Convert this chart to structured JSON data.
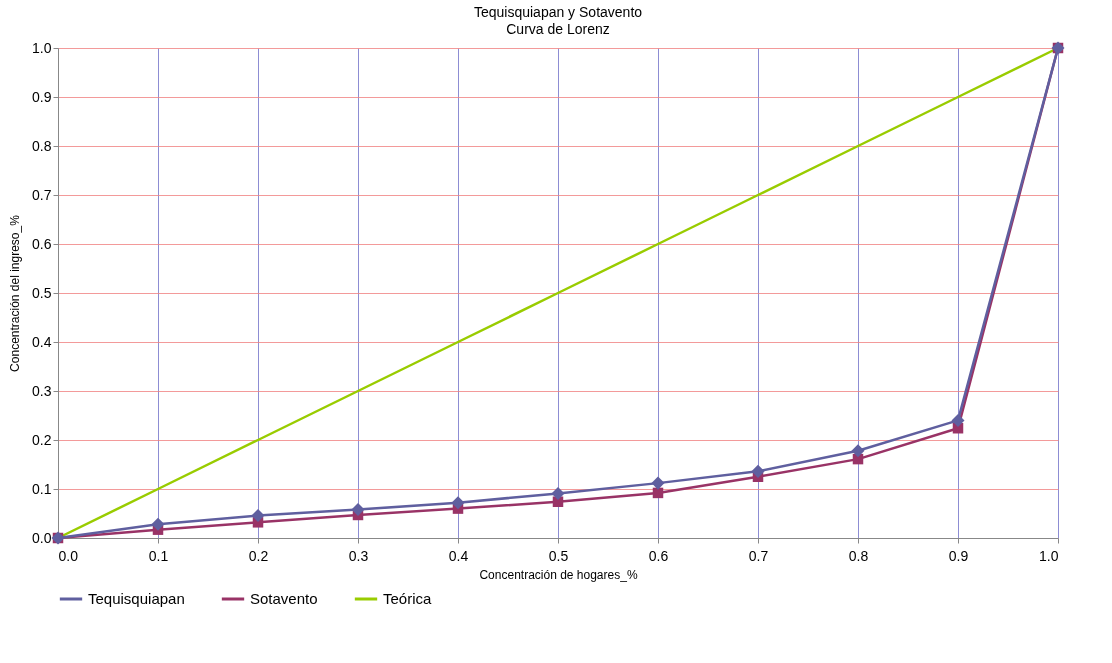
{
  "chart_data": {
    "type": "line",
    "title": "Tequisquiapan y Sotavento",
    "subtitle": "Curva de Lorenz",
    "xlabel": "Concentración de hogares_%",
    "ylabel": "Concentración del ingreso_%",
    "x": [
      0,
      0.1,
      0.2,
      0.3,
      0.4,
      0.5,
      0.6,
      0.7,
      0.8,
      0.9,
      1.0
    ],
    "series": [
      {
        "name": "Tequisquiapan",
        "color": "#5f5f9f",
        "marker": "diamond",
        "values": [
          0,
          0.028,
          0.046,
          0.058,
          0.072,
          0.091,
          0.112,
          0.136,
          0.178,
          0.24,
          1.0
        ]
      },
      {
        "name": "Sotavento",
        "color": "#993366",
        "marker": "square",
        "values": [
          0,
          0.017,
          0.032,
          0.047,
          0.06,
          0.074,
          0.092,
          0.125,
          0.161,
          0.224,
          1.0
        ]
      },
      {
        "name": "Teórica",
        "color": "#99cc00",
        "marker": "none",
        "values": [
          0,
          0.1,
          0.2,
          0.3,
          0.4,
          0.5,
          0.6,
          0.7,
          0.8,
          0.9,
          1.0
        ]
      }
    ],
    "xlim": [
      0,
      1
    ],
    "ylim": [
      0,
      1
    ],
    "xticks": [
      {
        "value": 0,
        "label": "0.0"
      },
      0.1,
      0.2,
      0.3,
      0.4,
      0.5,
      0.6,
      0.7,
      0.8,
      0.9,
      {
        "value": 1,
        "label": "1.0"
      }
    ],
    "yticks": [
      {
        "value": 0,
        "label": "0.0"
      },
      0.1,
      0.2,
      0.3,
      0.4,
      0.5,
      0.6,
      0.7,
      0.8,
      0.9,
      {
        "value": 1,
        "label": "1.0"
      }
    ],
    "grid": true,
    "legend": "bottom"
  }
}
